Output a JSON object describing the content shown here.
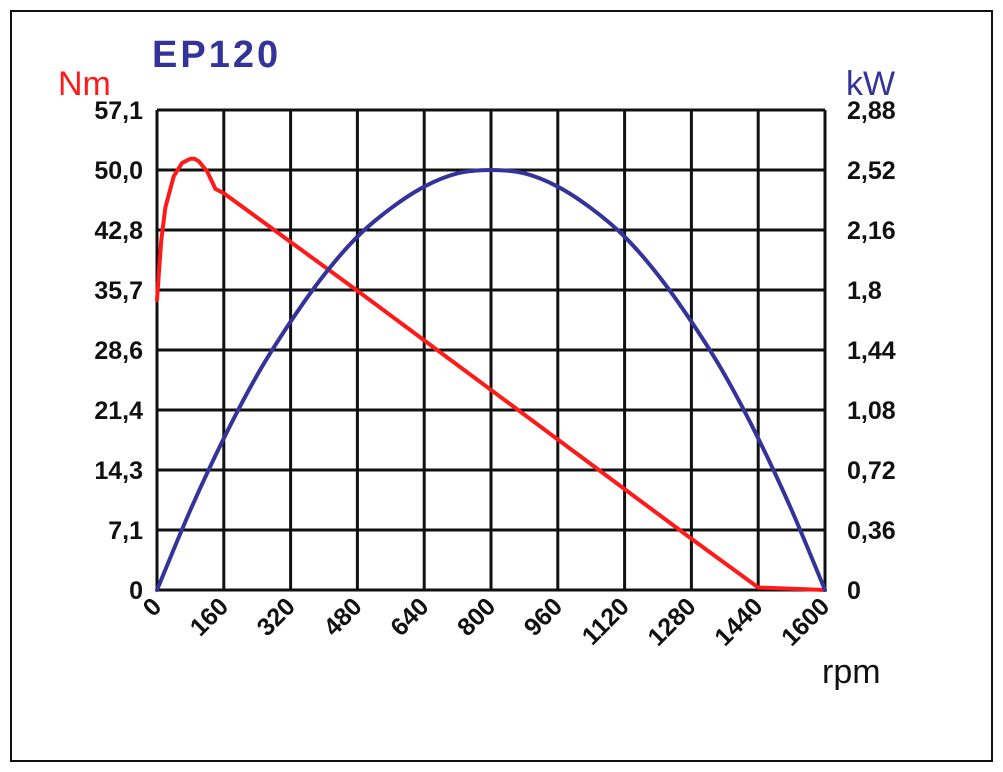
{
  "chart_data": {
    "type": "line",
    "title": "EP120",
    "xlabel": "rpm",
    "ylabel_left": "Nm",
    "ylabel_right": "kW",
    "x_ticks": [
      "0",
      "160",
      "320",
      "480",
      "640",
      "800",
      "960",
      "1120",
      "1280",
      "1440",
      "1600"
    ],
    "y_left_ticks": [
      "0",
      "7,1",
      "14,3",
      "21,4",
      "28,6",
      "35,7",
      "42,8",
      "50,0",
      "57,1"
    ],
    "y_right_ticks": [
      "0",
      "0,36",
      "0,72",
      "1,08",
      "1,44",
      "1,8",
      "2,16",
      "2,52",
      "2,88"
    ],
    "xlim": [
      0,
      1600
    ],
    "ylim_left": [
      0,
      57.1
    ],
    "ylim_right": [
      0,
      2.88
    ],
    "grid": true,
    "series": [
      {
        "axis": "left",
        "color": "#ff1a1a",
        "x": [
          0,
          10,
          20,
          40,
          60,
          80,
          90,
          100,
          120,
          140,
          160,
          320,
          480,
          640,
          800,
          960,
          1120,
          1280,
          1440,
          1600
        ],
        "y": [
          34.5,
          41.5,
          45.5,
          49.2,
          50.8,
          51.3,
          51.3,
          51.0,
          49.8,
          47.7,
          47.2,
          41.4,
          35.6,
          29.7,
          23.8,
          17.9,
          12.0,
          6.1,
          0.3,
          0
        ]
      },
      {
        "axis": "right",
        "color": "#333399",
        "x": [
          0,
          80,
          160,
          240,
          320,
          400,
          480,
          560,
          640,
          720,
          800,
          880,
          960,
          1040,
          1120,
          1200,
          1280,
          1360,
          1440,
          1520,
          1600
        ],
        "y": [
          0,
          0.48,
          0.91,
          1.29,
          1.61,
          1.89,
          2.12,
          2.29,
          2.42,
          2.5,
          2.52,
          2.5,
          2.42,
          2.29,
          2.12,
          1.89,
          1.61,
          1.29,
          0.91,
          0.48,
          0
        ]
      }
    ]
  }
}
